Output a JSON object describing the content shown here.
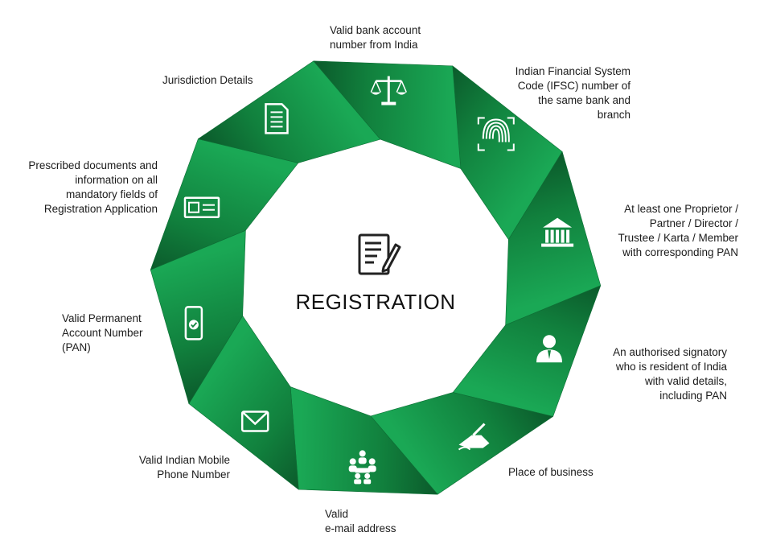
{
  "center": {
    "title": "REGISTRATION",
    "icon": "registration-form-icon"
  },
  "segments": [
    {
      "id": "bank-account",
      "icon": "fingerprint-icon",
      "label": "Valid bank account\nnumber from India"
    },
    {
      "id": "ifsc",
      "icon": "bank-icon",
      "label": "Indian Financial System\nCode (IFSC) number of\nthe same bank and\nbranch"
    },
    {
      "id": "proprietor",
      "icon": "person-icon",
      "label": "At least one Proprietor /\nPartner / Director /\nTrustee / Karta / Member\nwith corresponding PAN"
    },
    {
      "id": "signatory",
      "icon": "signing-hand-icon",
      "label": "An authorised signatory\nwho is resident of India\nwith valid details,\nincluding PAN"
    },
    {
      "id": "place-of-business",
      "icon": "people-group-icon",
      "label": "Place of business"
    },
    {
      "id": "email",
      "icon": "envelope-icon",
      "label": "Valid\ne-mail address"
    },
    {
      "id": "mobile",
      "icon": "mobile-check-icon",
      "label": "Valid Indian Mobile\nPhone Number"
    },
    {
      "id": "pan",
      "icon": "id-card-icon",
      "label": "Valid Permanent\nAccount Number\n(PAN)"
    },
    {
      "id": "documents",
      "icon": "document-icon",
      "label": "Prescribed documents and\ninformation on all\nmandatory fields of\nRegistration Application"
    },
    {
      "id": "jurisdiction",
      "icon": "scales-icon",
      "label": "Jurisdiction Details"
    }
  ],
  "colors": {
    "green_light": "#17a14f",
    "green_mid": "#12853f",
    "green_dark": "#0b5a2b",
    "text": "#1b1b1b"
  }
}
